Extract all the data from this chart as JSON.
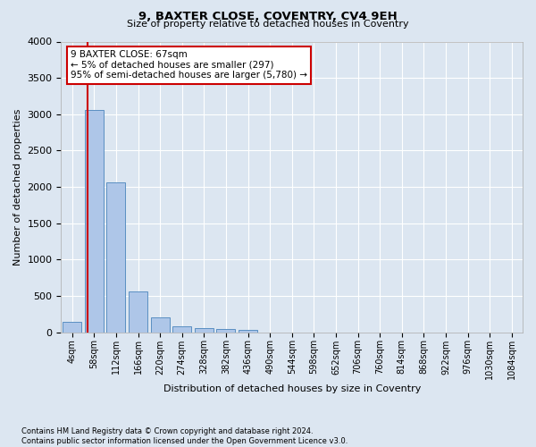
{
  "title_line1": "9, BAXTER CLOSE, COVENTRY, CV4 9EH",
  "title_line2": "Size of property relative to detached houses in Coventry",
  "xlabel": "Distribution of detached houses by size in Coventry",
  "ylabel": "Number of detached properties",
  "bar_labels": [
    "4sqm",
    "58sqm",
    "112sqm",
    "166sqm",
    "220sqm",
    "274sqm",
    "328sqm",
    "382sqm",
    "436sqm",
    "490sqm",
    "544sqm",
    "598sqm",
    "652sqm",
    "706sqm",
    "760sqm",
    "814sqm",
    "868sqm",
    "922sqm",
    "976sqm",
    "1030sqm",
    "1084sqm"
  ],
  "bar_values": [
    140,
    3060,
    2060,
    560,
    200,
    80,
    55,
    45,
    30,
    0,
    0,
    0,
    0,
    0,
    0,
    0,
    0,
    0,
    0,
    0,
    0
  ],
  "bar_color": "#aec6e8",
  "bar_edge_color": "#5a8fc2",
  "background_color": "#dce6f1",
  "grid_color": "#ffffff",
  "vline_color": "#cc0000",
  "ylim": [
    0,
    4000
  ],
  "annotation_text": "9 BAXTER CLOSE: 67sqm\n← 5% of detached houses are smaller (297)\n95% of semi-detached houses are larger (5,780) →",
  "footnote_line1": "Contains HM Land Registry data © Crown copyright and database right 2024.",
  "footnote_line2": "Contains public sector information licensed under the Open Government Licence v3.0.",
  "figsize": [
    6.0,
    5.0
  ],
  "dpi": 100
}
